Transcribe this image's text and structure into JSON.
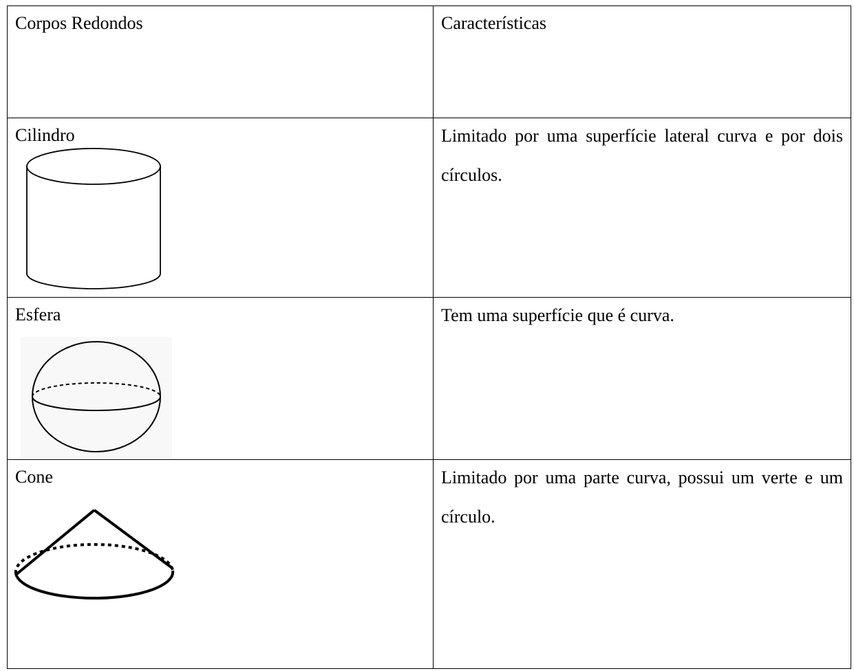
{
  "table": {
    "header": [
      "Corpos Redondos",
      "Características"
    ],
    "rows": [
      [
        "Cilindro",
        "Limitado por uma superfície lateral curva e por dois círculos."
      ],
      [
        "Esfera",
        "Tem uma superfície que é curva."
      ],
      [
        "Cone",
        "Limitado por uma parte curva, possui um verte e um círculo."
      ]
    ]
  }
}
